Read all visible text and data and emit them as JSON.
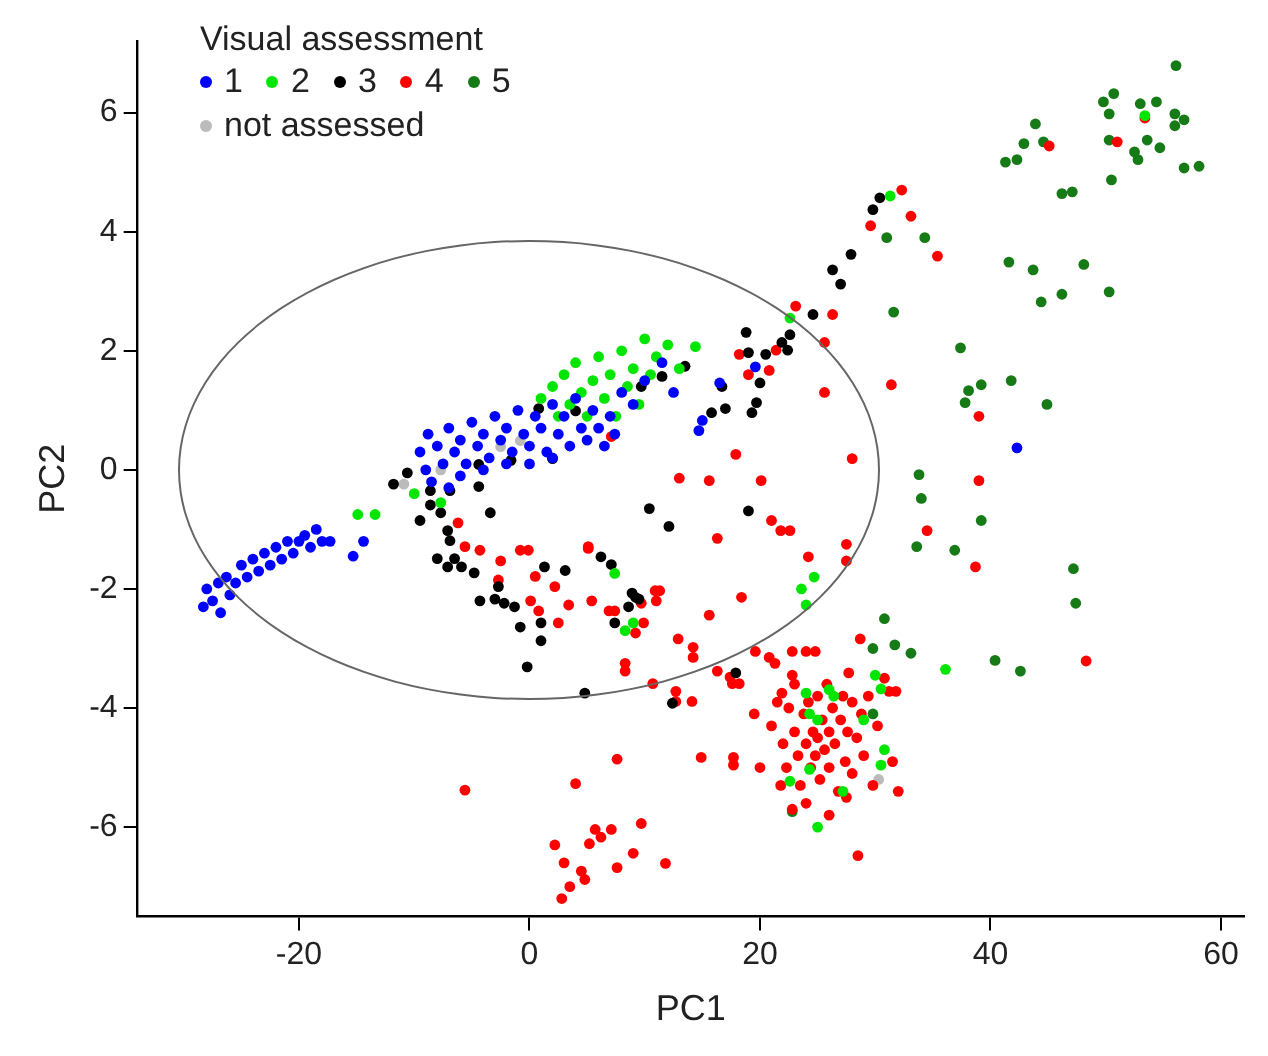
{
  "chart_data": {
    "type": "scatter",
    "xlabel": "PC1",
    "ylabel": "PC2",
    "legend_title": "Visual assessment",
    "legend": "top left",
    "marker": "circle",
    "grid": false,
    "xlim": [
      -34,
      62
    ],
    "ylim": [
      -7.5,
      7.2
    ],
    "xticks": [
      -20,
      0,
      20,
      40,
      60
    ],
    "yticks": [
      -6,
      -4,
      -2,
      0,
      2,
      4,
      6
    ],
    "series": [
      {
        "name": "1",
        "color": "#0000ff",
        "x": [
          -28.3,
          -28,
          -27.5,
          -27,
          -26.8,
          -26.3,
          -26,
          -25.5,
          -25,
          -24.5,
          -24,
          -23.5,
          -23,
          -22.5,
          -22,
          -21.5,
          -21,
          -20.5,
          -20,
          -19.5,
          -19,
          -18.5,
          -18,
          -17.3,
          -15.3,
          -14.4,
          -9.5,
          -9,
          -8.8,
          -8.5,
          -8,
          -7.5,
          -7,
          -6.5,
          -6,
          -5.5,
          -5,
          -4.5,
          -4,
          -3.5,
          -3,
          -2.5,
          -2,
          -1.5,
          -1,
          -0.5,
          0,
          0.5,
          1,
          1.5,
          2,
          2.5,
          3,
          3.5,
          4,
          4.5,
          5,
          5.5,
          6,
          6.5,
          7,
          7.4,
          8,
          9,
          -7,
          -6,
          -4,
          -2,
          0,
          2,
          10,
          11.5,
          12.5,
          15,
          14.7,
          16.5,
          19.6,
          42.3
        ],
        "values": [
          -2.3,
          -2.0,
          -2.2,
          -1.9,
          -2.4,
          -1.8,
          -2.1,
          -1.9,
          -1.6,
          -1.8,
          -1.5,
          -1.7,
          -1.4,
          -1.6,
          -1.3,
          -1.5,
          -1.2,
          -1.4,
          -1.2,
          -1.1,
          -1.3,
          -1.0,
          -1.2,
          -1.2,
          -1.45,
          -1.2,
          0.3,
          0.0,
          0.6,
          -0.2,
          0.4,
          0.1,
          0.7,
          0.3,
          0.5,
          0.1,
          0.8,
          0.4,
          0.6,
          0.2,
          0.9,
          0.5,
          0.7,
          0.3,
          1.0,
          0.6,
          0.4,
          0.9,
          0.7,
          0.3,
          1.1,
          0.6,
          0.9,
          0.4,
          1.2,
          0.7,
          0.5,
          1.0,
          0.7,
          0.4,
          0.9,
          0.6,
          1.3,
          1.1,
          -0.3,
          -0.1,
          0.0,
          0.1,
          0.1,
          0.2,
          1.5,
          1.8,
          1.3,
          0.83,
          0.66,
          1.46,
          1.73,
          0.37
        ]
      },
      {
        "name": "2",
        "color": "#00e600",
        "x": [
          -14.9,
          -13.4,
          -10,
          -7.7,
          1,
          2,
          2.5,
          3,
          3.5,
          4,
          4.5,
          5,
          5.5,
          6,
          6.5,
          7,
          7.5,
          8,
          8.5,
          9,
          9.5,
          10,
          10.5,
          11,
          12,
          13,
          14.4,
          22.6,
          31.3,
          53.4,
          7.4,
          9,
          8.3,
          24.7,
          23.6,
          24,
          24,
          26,
          26.4,
          24.3,
          25,
          30,
          30.5,
          29,
          30.8,
          30.5,
          24.3,
          22.6,
          27.2,
          25,
          36.1
        ],
        "values": [
          -0.75,
          -0.75,
          -0.4,
          -0.55,
          1.2,
          1.4,
          0.9,
          1.6,
          1.1,
          1.8,
          1.3,
          0.9,
          1.5,
          1.9,
          1.2,
          1.6,
          0.9,
          2.0,
          1.4,
          1.7,
          1.1,
          2.2,
          1.6,
          1.9,
          2.1,
          1.7,
          2.07,
          2.55,
          4.6,
          5.95,
          -1.74,
          -2.57,
          -2.7,
          -1.8,
          -2.0,
          -2.27,
          -3.75,
          -3.69,
          -3.8,
          -4.1,
          -4.2,
          -3.45,
          -3.68,
          -4.2,
          -4.7,
          -4.96,
          -5.03,
          -5.23,
          -5.4,
          -6.0,
          -3.35
        ]
      },
      {
        "name": "3",
        "color": "#000000",
        "x": [
          -10.6,
          -11.8,
          -8.6,
          -6.9,
          -4.4,
          -8.6,
          -7.7,
          -9.5,
          -3.4,
          -7.1,
          -6.9,
          -8,
          -6.5,
          -5.9,
          -7.1,
          -4.8,
          -4.3,
          -3,
          -2.2,
          -1.3,
          -2.7,
          -0.8,
          1,
          1,
          -0.2,
          1.3,
          3.1,
          6.2,
          7.1,
          9.2,
          8.6,
          10.4,
          12.1,
          4.8,
          4,
          0.8,
          2,
          -1.6,
          -4.4,
          11.5,
          13.5,
          9.7,
          30.4,
          29.8,
          27.9,
          26.3,
          27,
          24.6,
          22.6,
          21.9,
          22.4,
          20.5,
          19,
          18.8,
          20,
          19.7,
          19.3,
          16.7,
          17,
          15.8,
          19,
          8.9,
          9.5,
          7.4,
          17.9,
          12.4
        ],
        "values": [
          -0.05,
          -0.24,
          -0.35,
          -0.35,
          -0.28,
          -0.59,
          -0.72,
          -0.85,
          -0.72,
          -1.02,
          -1.19,
          -1.49,
          -1.49,
          -1.63,
          -1.63,
          -1.73,
          -2.2,
          -2.17,
          -2.24,
          -2.3,
          -1.96,
          -2.64,
          -2.57,
          -2.87,
          -3.31,
          -1.63,
          -1.69,
          -1.46,
          -1.59,
          -2.14,
          -2.3,
          -0.65,
          -0.95,
          -3.75,
          0.99,
          1.03,
          0.19,
          0.16,
          0.09,
          1.57,
          1.74,
          1.4,
          4.57,
          4.37,
          3.62,
          3.36,
          3.12,
          2.61,
          2.27,
          2.14,
          2.01,
          1.94,
          1.97,
          2.31,
          1.46,
          1.13,
          0.96,
          1.4,
          1.03,
          0.96,
          -0.69,
          -2.07,
          -2.17,
          -2.57,
          -3.41,
          -3.92
        ]
      },
      {
        "name": "4",
        "color": "#ff0000",
        "x": [
          32.3,
          33.1,
          29.6,
          35.4,
          45.1,
          51,
          53.4,
          31.4,
          39,
          39,
          34.5,
          38.7,
          48.3,
          23.1,
          26.3,
          25.6,
          21.4,
          18.2,
          19,
          20.8,
          25.6,
          28,
          17.9,
          13,
          15.6,
          20.1,
          21,
          21.8,
          22.6,
          16.3,
          5.1,
          27.5,
          24.2,
          27.5,
          11.3,
          11,
          18.4,
          5.4,
          6.9,
          15.6,
          9.9,
          9.2,
          12.9,
          14.2,
          14.2,
          8.3,
          8.3,
          16.3,
          17.4,
          19.6,
          20.8,
          21.3,
          22.8,
          24,
          24.8,
          10.7,
          12.7,
          12.7,
          14.1,
          17.6,
          18.2,
          21.9,
          22.8,
          27.7,
          28.7,
          31.2,
          31.8,
          7.1,
          -6.2,
          -5.6,
          -4.3,
          -2.5,
          -0.8,
          -0.1,
          -2.7,
          0.5,
          2.2,
          2.5,
          3.4,
          5.1,
          7.4,
          9.7,
          10.9,
          0.8,
          0.1,
          21,
          21.5,
          22,
          22.3,
          22.5,
          23,
          23,
          23.3,
          23.5,
          23.8,
          24,
          24.2,
          24.4,
          24.6,
          24.8,
          25,
          25,
          25.2,
          25.4,
          25.6,
          25.8,
          26,
          26,
          26.3,
          26.5,
          26.8,
          27,
          27.2,
          27.4,
          27.6,
          28,
          28,
          28.4,
          28.8,
          29,
          29.4,
          29.8,
          30.2,
          21.8,
          22.8,
          24,
          26,
          27.5,
          20,
          19.5,
          31.5,
          32,
          30.8,
          7.6,
          14.9,
          17.7,
          17.7,
          4,
          5.7,
          7.1,
          9.7,
          6.2,
          5.2,
          9,
          11.8,
          7.6,
          4.5,
          4.8,
          28.5,
          -5.6,
          2.2,
          3,
          3.5,
          2.8
        ],
        "values": [
          4.7,
          4.26,
          4.1,
          3.59,
          5.44,
          5.51,
          5.91,
          1.43,
          0.9,
          -0.18,
          -1.02,
          -1.63,
          -3.21,
          2.75,
          2.61,
          2.14,
          2.01,
          1.94,
          1.6,
          1.67,
          1.3,
          0.19,
          0.26,
          -0.14,
          -0.18,
          -0.18,
          -0.85,
          -1.02,
          -1.02,
          -1.15,
          -1.32,
          -1.25,
          -1.46,
          -1.53,
          -2.03,
          -2.2,
          -2.14,
          -2.2,
          -2.37,
          -2.44,
          -2.57,
          -2.74,
          -2.84,
          -2.98,
          -3.15,
          -3.25,
          -3.38,
          -3.38,
          -3.48,
          -3.05,
          -3.15,
          -3.25,
          -3.05,
          -3.05,
          -3.05,
          -3.59,
          -3.72,
          -3.89,
          -3.89,
          -3.59,
          -3.59,
          -3.75,
          -3.45,
          -3.41,
          -2.84,
          -3.72,
          -3.72,
          0.56,
          -0.89,
          -1.29,
          -1.35,
          -1.53,
          -1.35,
          -1.35,
          -1.85,
          -1.79,
          -1.96,
          -2.57,
          -2.27,
          -1.29,
          -2.37,
          -2.24,
          -2.03,
          -2.37,
          -2.2,
          -4.3,
          -3.9,
          -4.6,
          -5.0,
          -4.0,
          -4.4,
          -3.6,
          -4.8,
          -5.3,
          -4.1,
          -4.6,
          -3.9,
          -5.0,
          -4.4,
          -4.8,
          -3.8,
          -4.5,
          -5.2,
          -4.2,
          -4.7,
          -3.6,
          -4.4,
          -5.0,
          -4.0,
          -4.6,
          -5.4,
          -4.2,
          -3.8,
          -4.9,
          -4.4,
          -3.9,
          -5.1,
          -4.5,
          -4.1,
          -4.8,
          -3.8,
          -5.3,
          -4.3,
          -5.3,
          -5.7,
          -5.6,
          -5.8,
          -5.5,
          -5.0,
          -4.1,
          -4.9,
          -5.4,
          -3.5,
          -4.86,
          -4.83,
          -4.83,
          -4.96,
          -5.27,
          -6.04,
          -6.04,
          -5.94,
          -6.17,
          -6.28,
          -6.44,
          -6.61,
          -6.68,
          -6.74,
          -6.88,
          -6.48,
          -5.38,
          -6.3,
          -6.6,
          -7.0,
          -7.2
        ]
      },
      {
        "name": "5",
        "color": "#167a16",
        "x": [
          56.1,
          50.7,
          49.8,
          50.3,
          54.4,
          53,
          56,
          56.8,
          56,
          50.3,
          53.6,
          52.5,
          52.8,
          54.7,
          56.8,
          58.1,
          50.5,
          43.9,
          42.9,
          44.6,
          41.3,
          42.3,
          46.2,
          47.1,
          31,
          34.3,
          41.6,
          43.7,
          48.1,
          46.2,
          44.4,
          50.3,
          31.6,
          37.4,
          38.1,
          39.2,
          41.8,
          37.8,
          44.9,
          33.8,
          34,
          39.2,
          33.6,
          36.9,
          47.2,
          47.4,
          30.8,
          31.7,
          33.1,
          29.8,
          40.4,
          42.6,
          22.8,
          29.8
        ],
        "values": [
          6.79,
          6.32,
          6.18,
          5.98,
          6.18,
          6.15,
          5.98,
          5.88,
          5.78,
          5.54,
          5.54,
          5.34,
          5.21,
          5.41,
          5.07,
          5.1,
          4.87,
          5.81,
          5.48,
          5.51,
          5.17,
          5.21,
          4.64,
          4.67,
          3.9,
          3.9,
          3.49,
          3.36,
          3.45,
          2.95,
          2.82,
          2.99,
          2.65,
          2.05,
          1.33,
          1.43,
          1.5,
          1.13,
          1.1,
          -0.08,
          -0.48,
          -0.85,
          -1.29,
          -1.35,
          -1.66,
          -2.24,
          -2.5,
          -2.94,
          -3.08,
          -3.0,
          -3.2,
          -3.38,
          -5.74,
          -4.1
        ]
      },
      {
        "name": "not assessed",
        "color": "#bbbbbb",
        "x": [
          -10.9,
          -7.7,
          -0.8,
          -2.5,
          30.3
        ],
        "values": [
          -0.24,
          0,
          0.49,
          0.39,
          -5.2
        ]
      }
    ]
  }
}
